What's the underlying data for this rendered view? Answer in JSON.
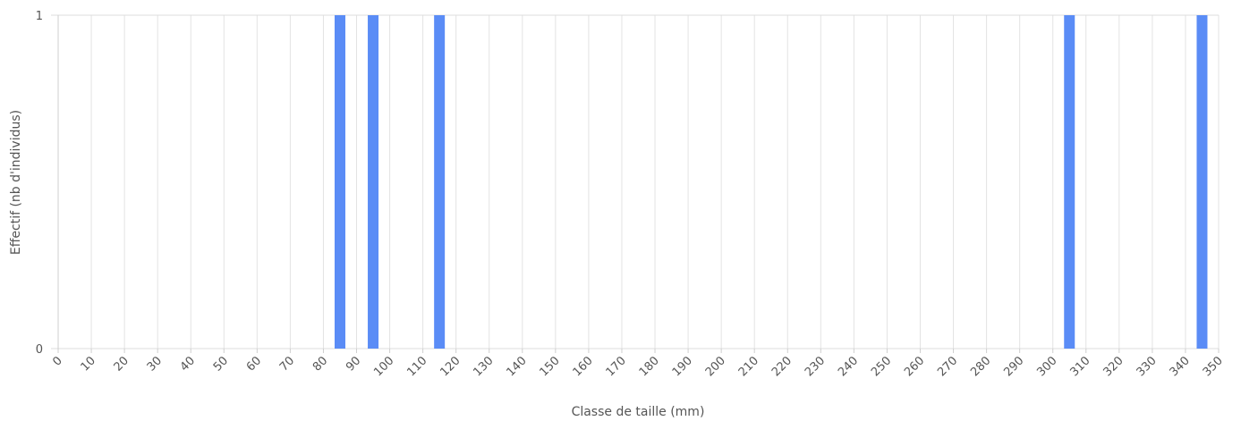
{
  "chart_data": {
    "type": "bar",
    "title": "",
    "xlabel": "Classe de taille (mm)",
    "ylabel": "Effectif (nb d'individus)",
    "x_ticks": [
      0,
      10,
      20,
      30,
      40,
      50,
      60,
      70,
      80,
      90,
      100,
      110,
      120,
      130,
      140,
      150,
      160,
      170,
      180,
      190,
      200,
      210,
      220,
      230,
      240,
      250,
      260,
      270,
      280,
      290,
      300,
      310,
      320,
      330,
      340,
      350
    ],
    "xlim": [
      0,
      350
    ],
    "ylim": [
      0,
      1
    ],
    "y_ticks": [
      0,
      1
    ],
    "series": [
      {
        "x": [
          85,
          95,
          115,
          305,
          345
        ],
        "values": [
          1,
          1,
          1,
          1,
          1
        ]
      }
    ],
    "bar_color": "#5a8cf6",
    "grid": true,
    "legend": "none"
  }
}
